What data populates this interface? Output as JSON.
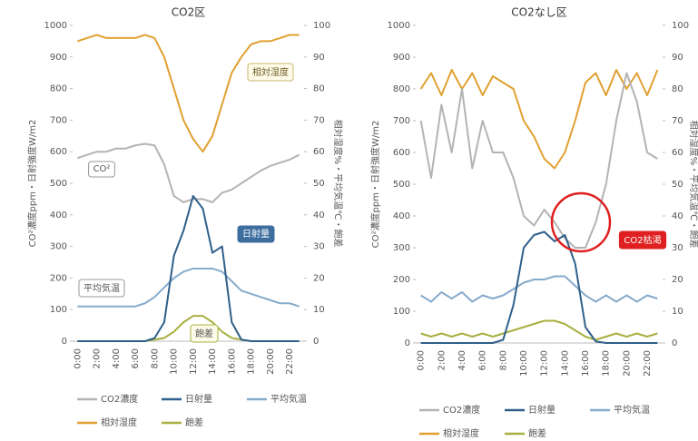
{
  "chart_data": [
    {
      "type": "line",
      "title": "CO2区",
      "y_label": "CO²濃度ppm・日射強度W/m2",
      "y2_label": "相対湿度%・平均気温℃・飽差",
      "categories": [
        "0:00",
        null,
        "2:00",
        null,
        "4:00",
        null,
        "6:00",
        null,
        "8:00",
        null,
        "10:00",
        null,
        "12:00",
        null,
        "14:00",
        null,
        "16:00",
        null,
        "18:00",
        null,
        "20:00",
        null,
        "22:00",
        null
      ],
      "ylim": [
        0,
        1000
      ],
      "yticks": [
        0,
        100,
        200,
        300,
        400,
        500,
        600,
        700,
        800,
        900,
        1000
      ],
      "y2lim": [
        0,
        100
      ],
      "y2ticks": [
        0,
        10,
        20,
        30,
        40,
        50,
        60,
        70,
        80,
        90,
        100
      ],
      "series": [
        {
          "name": "CO2濃度",
          "color": "#b3b3b3",
          "values": [
            580,
            590,
            600,
            600,
            610,
            610,
            620,
            625,
            620,
            560,
            460,
            440,
            450,
            450,
            440,
            470,
            480,
            500,
            520,
            540,
            555,
            565,
            575,
            590
          ]
        },
        {
          "name": "日射量",
          "color": "#2f5f8a",
          "values": [
            0,
            0,
            0,
            0,
            0,
            0,
            0,
            0,
            10,
            60,
            270,
            350,
            460,
            420,
            280,
            300,
            60,
            5,
            0,
            0,
            0,
            0,
            0,
            0
          ]
        },
        {
          "name": "平均気温",
          "color": "#86abcc",
          "axis": "y2",
          "values": [
            11,
            11,
            11,
            11,
            11,
            11,
            11,
            12,
            14,
            17,
            20,
            22,
            23,
            23,
            23,
            22,
            19,
            16,
            15,
            14,
            13,
            12,
            12,
            11
          ]
        },
        {
          "name": "相対湿度",
          "color": "#e0a030",
          "axis": "y2",
          "values": [
            95,
            96,
            97,
            96,
            96,
            96,
            96,
            97,
            96,
            90,
            80,
            70,
            64,
            60,
            65,
            75,
            85,
            90,
            94,
            95,
            95,
            96,
            97,
            97
          ]
        },
        {
          "name": "飽差",
          "color": "#a8b040",
          "axis": "y2",
          "values": [
            0,
            0,
            0,
            0,
            0,
            0,
            0,
            0,
            0.5,
            1,
            3,
            6,
            8,
            8,
            6,
            3,
            1,
            0.5,
            0,
            0,
            0,
            0,
            0,
            0
          ]
        }
      ],
      "annotations": [
        "相対湿度",
        "CO²",
        "日射量",
        "平均気温",
        "飽差"
      ]
    },
    {
      "type": "line",
      "title": "CO2なし区",
      "y_label": "CO²濃度ppm・日射強度W/m2",
      "y2_label": "相対湿度%・平均気温℃・飽差",
      "categories": [
        "0:00",
        null,
        "2:00",
        null,
        "4:00",
        null,
        "6:00",
        null,
        "8:00",
        null,
        "10:00",
        null,
        "12:00",
        null,
        "14:00",
        null,
        "16:00",
        null,
        "18:00",
        null,
        "20:00",
        null,
        "22:00",
        null
      ],
      "ylim": [
        0,
        1000
      ],
      "yticks": [
        0,
        100,
        200,
        300,
        400,
        500,
        600,
        700,
        800,
        900,
        1000
      ],
      "y2lim": [
        0,
        100
      ],
      "y2ticks": [
        0,
        10,
        20,
        30,
        40,
        50,
        60,
        70,
        80,
        90,
        100
      ],
      "series": [
        {
          "name": "CO2濃度",
          "color": "#b3b3b3",
          "values": [
            700,
            520,
            750,
            600,
            800,
            550,
            700,
            600,
            600,
            520,
            400,
            370,
            420,
            380,
            330,
            300,
            300,
            380,
            500,
            700,
            850,
            760,
            600,
            580
          ]
        },
        {
          "name": "日射量",
          "color": "#2f5f8a",
          "values": [
            0,
            0,
            0,
            0,
            0,
            0,
            0,
            0,
            10,
            120,
            300,
            340,
            350,
            320,
            340,
            250,
            50,
            5,
            0,
            0,
            0,
            0,
            0,
            0
          ]
        },
        {
          "name": "平均気温",
          "color": "#86abcc",
          "axis": "y2",
          "values": [
            15,
            13,
            16,
            14,
            16,
            13,
            15,
            14,
            15,
            17,
            19,
            20,
            20,
            21,
            21,
            18,
            15,
            13,
            15,
            13,
            15,
            13,
            15,
            14
          ]
        },
        {
          "name": "相対湿度",
          "color": "#e0a030",
          "axis": "y2",
          "values": [
            80,
            85,
            78,
            86,
            80,
            85,
            78,
            84,
            82,
            80,
            70,
            65,
            58,
            55,
            60,
            70,
            82,
            85,
            78,
            86,
            80,
            85,
            78,
            86
          ]
        },
        {
          "name": "飽差",
          "color": "#a8b040",
          "axis": "y2",
          "values": [
            3,
            2,
            3,
            2,
            3,
            2,
            3,
            2,
            3,
            4,
            5,
            6,
            7,
            7,
            6,
            4,
            2,
            1,
            2,
            3,
            2,
            3,
            2,
            3
          ]
        }
      ],
      "annotations": [
        "CO2枯渇"
      ]
    }
  ]
}
